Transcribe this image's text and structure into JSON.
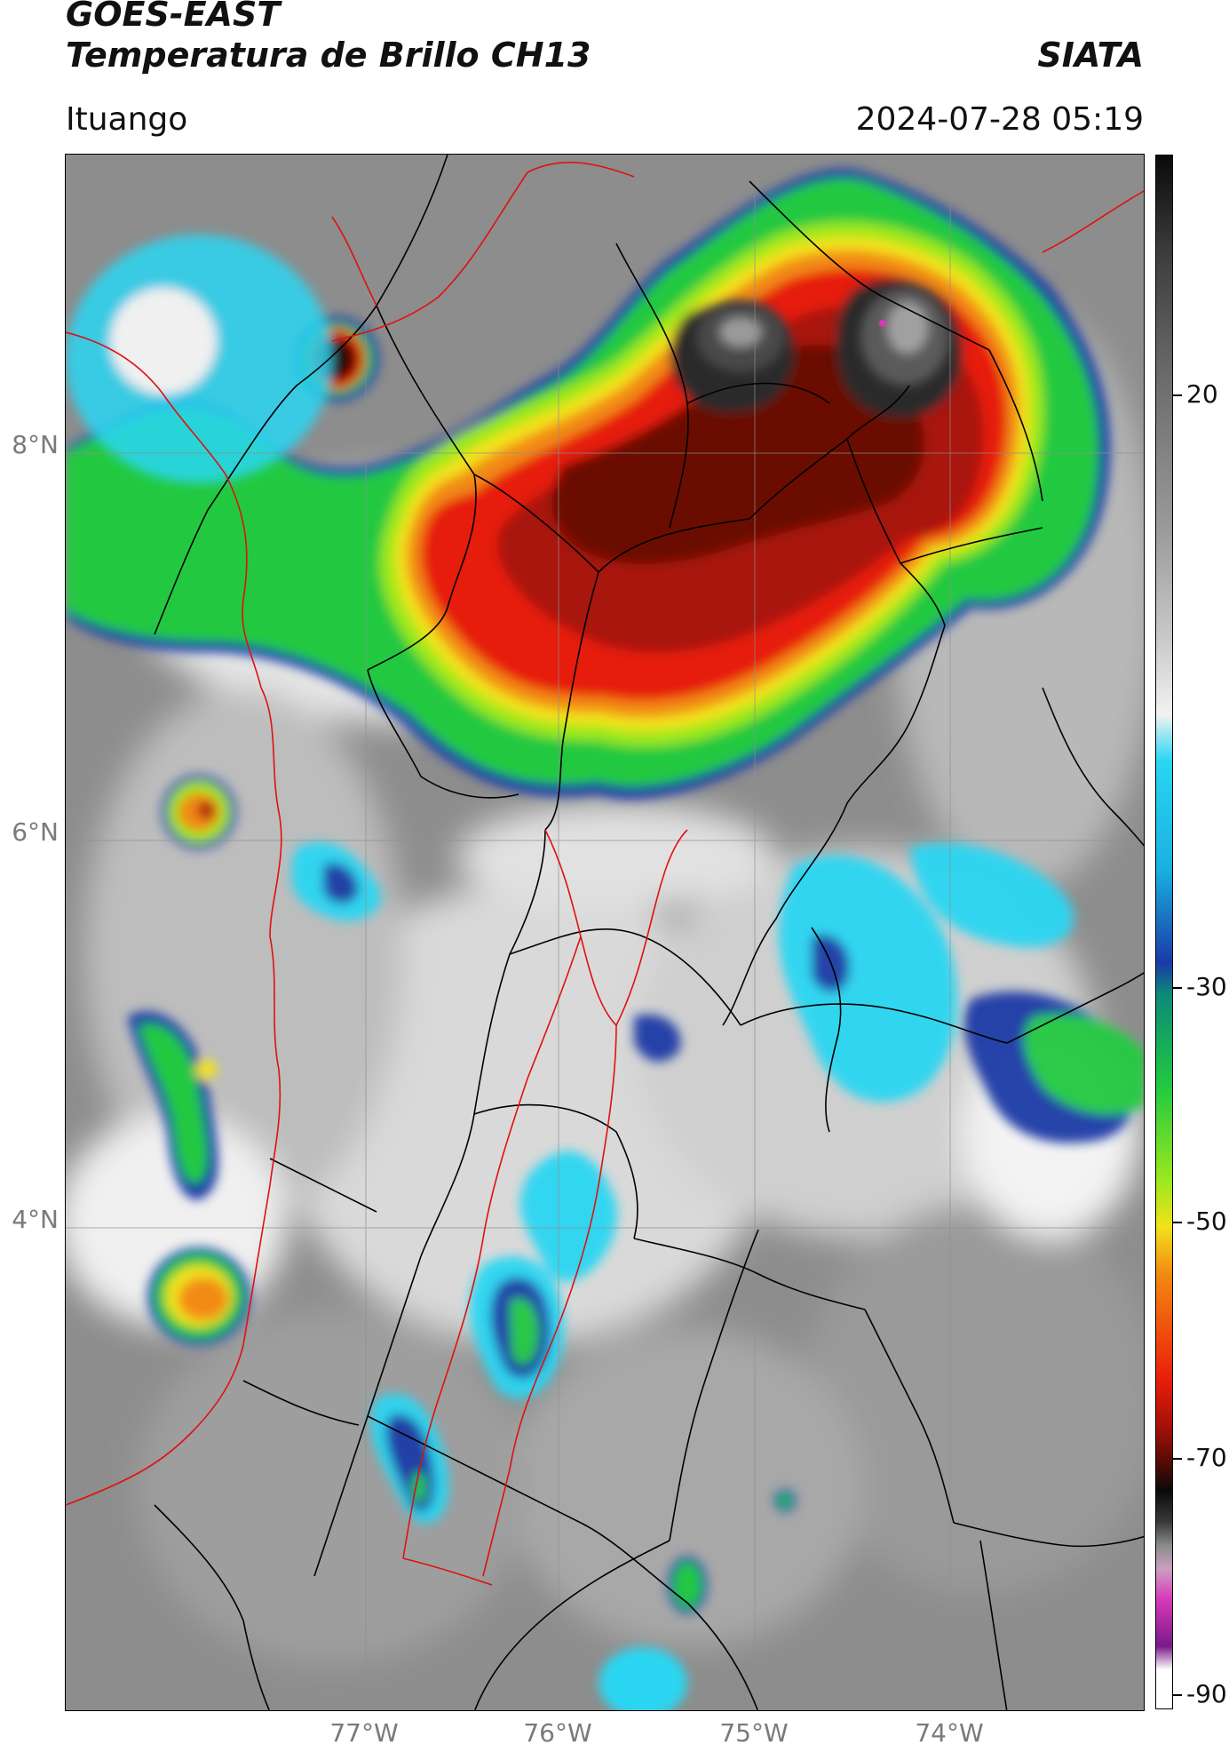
{
  "header": {
    "satellite": "GOES-EAST",
    "product": "Temperatura de Brillo CH13",
    "organization": "SIATA",
    "location": "Ituango",
    "timestamp": "2024-07-28 05:19"
  },
  "map": {
    "lat_ticks": [
      "8°N",
      "6°N",
      "4°N"
    ],
    "lon_ticks": [
      "77°W",
      "76°W",
      "75°W",
      "74°W"
    ],
    "extent_deg": {
      "lon_min": -78.55,
      "lon_max": -72.6,
      "lat_min": 2.6,
      "lat_max": 9.55
    },
    "background": "infrared brightness temperature, grayscale for warm cloud/ground",
    "features": [
      "large deep convective system over northern Antioquia",
      "scattered convection over central Andes",
      "Pacific convective cells"
    ]
  },
  "colorbar": {
    "ticks": [
      "20",
      "-30",
      "-50",
      "-70",
      "-90"
    ],
    "tick_values": [
      20,
      -30,
      -50,
      -70,
      -90
    ],
    "range": [
      -92,
      30
    ],
    "colors": {
      "warm_gray": "#8a8a8a",
      "light_gray": "#e8e8e8",
      "cyan": "#29d6f2",
      "blue": "#1a3aa6",
      "green": "#22c940",
      "lime": "#9be81e",
      "yellow": "#f2e21a",
      "orange": "#f28a12",
      "red": "#e61c0a",
      "dark_red": "#5a0a05",
      "black": "#0a0a0a",
      "magenta": "#d838b8",
      "purple": "#7a1a8a"
    }
  }
}
